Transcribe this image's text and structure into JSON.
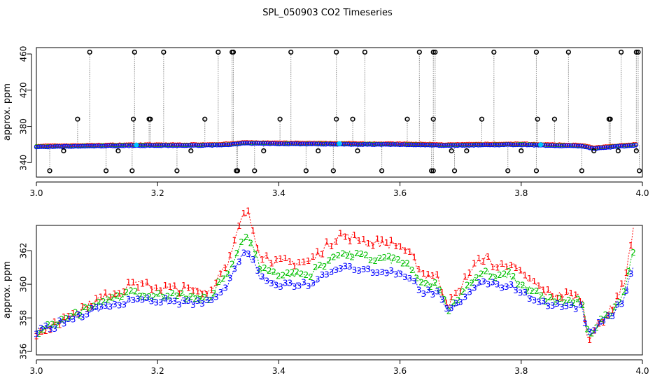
{
  "title": "SPL_050903  CO2 Timeseries",
  "colors": {
    "background": "#ffffff",
    "frame": "#000000",
    "series_1": "#ff0000",
    "series_2": "#00c000",
    "series_3": "#0000ff",
    "cyan": "#00c8ff",
    "spike": "#888888"
  },
  "chart_data": [
    {
      "type": "scatter",
      "panel": "top",
      "title": "SPL_050903  CO2 Timeseries",
      "xlabel": "",
      "ylabel": "approx. ppm",
      "xlim": [
        3.0,
        4.0
      ],
      "ylim": [
        324,
        467
      ],
      "xticks": [
        3.0,
        3.2,
        3.4,
        3.6,
        3.8,
        4.0
      ],
      "xtick_labels": [
        "3.0",
        "3.2",
        "3.4",
        "3.6",
        "3.8",
        "4.0"
      ],
      "yticks": [
        340,
        380,
        420,
        460
      ],
      "ytick_labels": [
        "340",
        "380",
        "420",
        "460"
      ],
      "grid": false,
      "baseline_knots": {
        "x": [
          3.0,
          3.05,
          3.1,
          3.15,
          3.2,
          3.25,
          3.3,
          3.33,
          3.34,
          3.4,
          3.5,
          3.6,
          3.66,
          3.67,
          3.72,
          3.8,
          3.85,
          3.9,
          3.92,
          3.95,
          3.99
        ],
        "y": [
          357,
          357.5,
          358,
          358.5,
          358.5,
          358.5,
          359,
          360,
          361,
          360.5,
          360,
          359.5,
          359,
          358.5,
          359,
          359.5,
          358.5,
          358,
          355,
          357,
          359
        ]
      },
      "outlier_high": [
        3.088,
        3.162,
        3.21,
        3.3,
        3.323,
        3.325,
        3.42,
        3.495,
        3.542,
        3.632,
        3.655,
        3.658,
        3.755,
        3.825,
        3.878,
        3.965,
        3.99,
        3.993
      ],
      "outlier_mid": [
        3.068,
        3.16,
        3.186,
        3.188,
        3.278,
        3.402,
        3.495,
        3.522,
        3.612,
        3.655,
        3.735,
        3.827,
        3.855,
        3.945,
        3.947
      ],
      "outlier_low": [
        3.022,
        3.115,
        3.158,
        3.232,
        3.33,
        3.332,
        3.36,
        3.445,
        3.49,
        3.57,
        3.652,
        3.655,
        3.69,
        3.778,
        3.825,
        3.9,
        3.995
      ],
      "outlier_near": [
        3.045,
        3.135,
        3.255,
        3.375,
        3.465,
        3.53,
        3.685,
        3.71,
        3.8,
        3.92,
        3.96,
        3.99
      ],
      "cyan_markers": [
        3.165,
        3.5,
        3.832
      ],
      "outlier_values": {
        "high": 462,
        "mid": 388,
        "low": 331,
        "near": 353
      }
    },
    {
      "type": "line",
      "panel": "bottom",
      "xlabel": "",
      "ylabel": "approx. ppm",
      "xlim": [
        3.0,
        4.0
      ],
      "ylim": [
        355.8,
        363.5
      ],
      "xticks": [
        3.0,
        3.2,
        3.4,
        3.6,
        3.8,
        4.0
      ],
      "xtick_labels": [
        "3.0",
        "3.2",
        "3.4",
        "3.6",
        "3.8",
        "4.0"
      ],
      "yticks": [
        356,
        358,
        360,
        362
      ],
      "ytick_labels": [
        "356",
        "358",
        "360",
        "362"
      ],
      "grid": false,
      "series": [
        {
          "name": "1",
          "symbol": "1",
          "color": "#ff0000",
          "offset": 0.9,
          "amplitude": 1.5
        },
        {
          "name": "2",
          "symbol": "2",
          "color": "#00c000",
          "offset": 0.4,
          "amplitude": 1.2
        },
        {
          "name": "3",
          "symbol": "3",
          "color": "#0000ff",
          "offset": 0.0,
          "amplitude": 1.0
        }
      ],
      "base_knots": {
        "x": [
          3.0,
          3.03,
          3.06,
          3.1,
          3.15,
          3.16,
          3.17,
          3.2,
          3.25,
          3.29,
          3.3,
          3.32,
          3.34,
          3.35,
          3.37,
          3.4,
          3.45,
          3.5,
          3.55,
          3.6,
          3.62,
          3.64,
          3.66,
          3.68,
          3.7,
          3.72,
          3.74,
          3.76,
          3.78,
          3.8,
          3.82,
          3.84,
          3.86,
          3.88,
          3.9,
          3.91,
          3.93,
          3.95,
          3.97,
          3.985
        ],
        "y": [
          357.2,
          357.5,
          358,
          358.5,
          359,
          359.2,
          359.1,
          359,
          358.9,
          358.9,
          359.5,
          360.2,
          361.8,
          361.9,
          360.3,
          360,
          360,
          361.1,
          360.8,
          360.7,
          360.2,
          359.5,
          359.5,
          358.3,
          359,
          359.8,
          360.2,
          359.8,
          360,
          359.5,
          359.2,
          358.8,
          358.7,
          358.7,
          358.6,
          357,
          357.6,
          358.2,
          359.2,
          361.2
        ]
      },
      "points": 260
    }
  ]
}
